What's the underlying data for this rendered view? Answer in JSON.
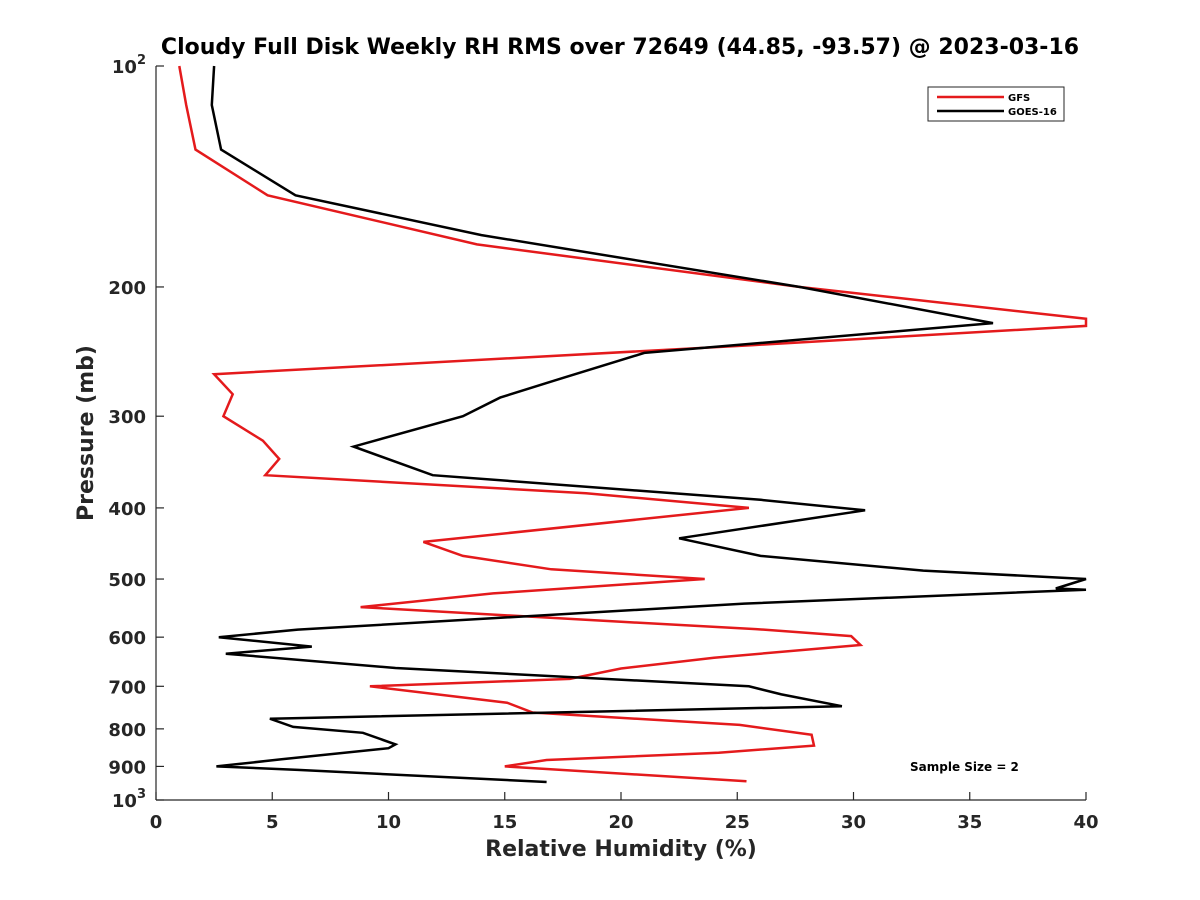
{
  "chart_data": {
    "type": "line",
    "title": "Cloudy Full Disk Weekly RH RMS over 72649 (44.85, -93.57) @ 2023-03-16",
    "xlabel": "Relative Humidity (%)",
    "ylabel": "Pressure (mb)",
    "xlim": [
      0,
      40
    ],
    "ylim": [
      100,
      1000
    ],
    "yscale": "log",
    "y_reversed": true,
    "grid": false,
    "legend_position": "top-right",
    "x_ticks": [
      "0",
      "5",
      "10",
      "15",
      "20",
      "25",
      "30",
      "35",
      "40"
    ],
    "y_ticks": [
      {
        "value": 100,
        "base": "10",
        "exp": "2"
      },
      {
        "value": 200,
        "label": "200"
      },
      {
        "value": 300,
        "label": "300"
      },
      {
        "value": 400,
        "label": "400"
      },
      {
        "value": 500,
        "label": "500"
      },
      {
        "value": 600,
        "label": "600"
      },
      {
        "value": 700,
        "label": "700"
      },
      {
        "value": 800,
        "label": "800"
      },
      {
        "value": 900,
        "label": "900"
      },
      {
        "value": 1000,
        "base": "10",
        "exp": "3"
      }
    ],
    "annotation": "Sample Size = 2",
    "series": [
      {
        "name": "GFS",
        "color": "#e41a1c",
        "points": [
          [
            1.0,
            100
          ],
          [
            1.3,
            113
          ],
          [
            1.7,
            130
          ],
          [
            4.8,
            150
          ],
          [
            13.8,
            175
          ],
          [
            27.7,
            200
          ],
          [
            40.0,
            221
          ],
          [
            40.0,
            226
          ],
          [
            25.7,
            240
          ],
          [
            2.5,
            263
          ],
          [
            3.3,
            280
          ],
          [
            2.9,
            300
          ],
          [
            4.6,
            324
          ],
          [
            5.3,
            343
          ],
          [
            4.7,
            361
          ],
          [
            18.5,
            382
          ],
          [
            25.5,
            400
          ],
          [
            11.5,
            445
          ],
          [
            13.2,
            465
          ],
          [
            17.0,
            485
          ],
          [
            23.6,
            500
          ],
          [
            14.5,
            523
          ],
          [
            8.8,
            546
          ],
          [
            20.1,
            572
          ],
          [
            25.8,
            585
          ],
          [
            29.9,
            598
          ],
          [
            30.3,
            615
          ],
          [
            24.0,
            640
          ],
          [
            20.0,
            662
          ],
          [
            17.8,
            684
          ],
          [
            9.2,
            700
          ],
          [
            15.1,
            737
          ],
          [
            16.2,
            760
          ],
          [
            25.1,
            790
          ],
          [
            28.2,
            815
          ],
          [
            28.3,
            843
          ],
          [
            24.2,
            862
          ],
          [
            16.8,
            882
          ],
          [
            15.0,
            900
          ],
          [
            25.4,
            943
          ]
        ]
      },
      {
        "name": "GOES-16",
        "color": "#000000",
        "points": [
          [
            2.5,
            100
          ],
          [
            2.4,
            113
          ],
          [
            2.8,
            130
          ],
          [
            6.0,
            150
          ],
          [
            14.0,
            170
          ],
          [
            27.7,
            200
          ],
          [
            36.0,
            224
          ],
          [
            21.0,
            246
          ],
          [
            17.5,
            266
          ],
          [
            14.8,
            283
          ],
          [
            13.2,
            300
          ],
          [
            8.5,
            330
          ],
          [
            11.9,
            361
          ],
          [
            26.0,
            390
          ],
          [
            30.5,
            403
          ],
          [
            22.5,
            440
          ],
          [
            26.0,
            465
          ],
          [
            33.0,
            487
          ],
          [
            40.0,
            500
          ],
          [
            38.7,
            515
          ],
          [
            40.0,
            517
          ],
          [
            25.3,
            540
          ],
          [
            6.1,
            586
          ],
          [
            2.7,
            600
          ],
          [
            6.7,
            618
          ],
          [
            3.0,
            632
          ],
          [
            10.3,
            661
          ],
          [
            25.5,
            700
          ],
          [
            26.9,
            718
          ],
          [
            29.5,
            745
          ],
          [
            4.9,
            775
          ],
          [
            5.9,
            795
          ],
          [
            8.9,
            810
          ],
          [
            10.3,
            840
          ],
          [
            10.0,
            850
          ],
          [
            5.4,
            880
          ],
          [
            2.6,
            900
          ],
          [
            6.1,
            910
          ],
          [
            16.8,
            945
          ]
        ]
      }
    ]
  }
}
